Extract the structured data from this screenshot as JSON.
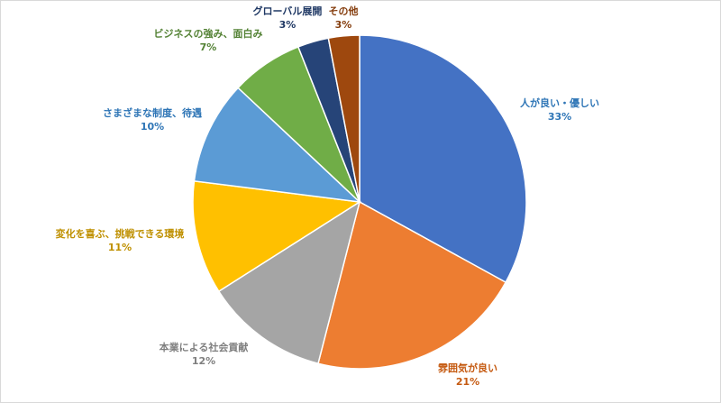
{
  "chart_data": {
    "type": "pie",
    "title": "",
    "start_angle_deg": 0,
    "direction": "clockwise",
    "slices": [
      {
        "label": "人が良い・優しい",
        "pct_label": "33%",
        "value": 33,
        "color": "#4472C4",
        "label_color": "#2E75B6"
      },
      {
        "label": "雰囲気が良い",
        "pct_label": "21%",
        "value": 21,
        "color": "#ED7D31",
        "label_color": "#C55A11"
      },
      {
        "label": "本業による社会貢献",
        "pct_label": "12%",
        "value": 12,
        "color": "#A5A5A5",
        "label_color": "#7F7F7F"
      },
      {
        "label": "変化を喜ぶ、挑戦できる環境",
        "pct_label": "11%",
        "value": 11,
        "color": "#FFC000",
        "label_color": "#BF9000"
      },
      {
        "label": "さまざまな制度、待遇",
        "pct_label": "10%",
        "value": 10,
        "color": "#5B9BD5",
        "label_color": "#2E75B6"
      },
      {
        "label": "ビジネスの強み、面白み",
        "pct_label": "7%",
        "value": 7,
        "color": "#70AD47",
        "label_color": "#548235"
      },
      {
        "label": "グローバル展開",
        "pct_label": "3%",
        "value": 3,
        "color": "#264478",
        "label_color": "#1F3864"
      },
      {
        "label": "その他",
        "pct_label": "3%",
        "value": 3,
        "color": "#9E480E",
        "label_color": "#843C0C"
      }
    ]
  }
}
